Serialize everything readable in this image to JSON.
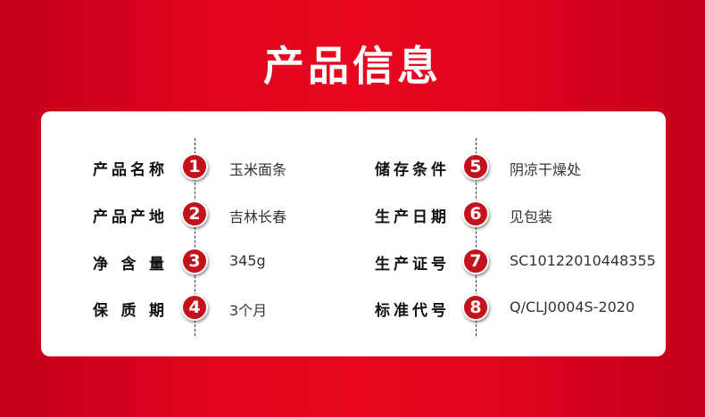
{
  "title": "产品信息",
  "colors": {
    "background": "#e0041f",
    "badge": "#c4121c"
  },
  "left": [
    {
      "label": "产品名称",
      "number": "1",
      "value": "玉米面条"
    },
    {
      "label": "产品产地",
      "number": "2",
      "value": "吉林长春"
    },
    {
      "label": "净含量",
      "number": "3",
      "value": "345g"
    },
    {
      "label": "保质期",
      "number": "4",
      "value": "3个月"
    }
  ],
  "right": [
    {
      "label": "储存条件",
      "number": "5",
      "value": "阴凉干燥处"
    },
    {
      "label": "生产日期",
      "number": "6",
      "value": "见包装"
    },
    {
      "label": "生产证号",
      "number": "7",
      "value": "SC10122010448355"
    },
    {
      "label": "标准代号",
      "number": "8",
      "value": "Q/CLJ0004S-2020"
    }
  ]
}
